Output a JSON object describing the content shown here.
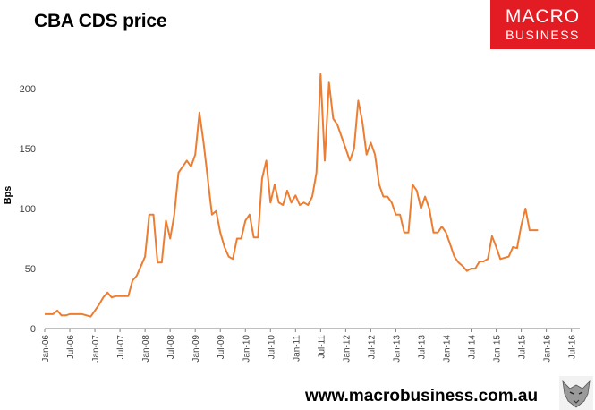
{
  "page": {
    "title": "CBA CDS price",
    "logo": {
      "line1": "MACRO",
      "line2": "BUSINESS"
    },
    "footer_url": "www.macrobusiness.com.au"
  },
  "colors": {
    "line": "#ED7D31",
    "axis": "#7f7f7f",
    "logo_bg": "#e31b23"
  },
  "chart_data": {
    "type": "line",
    "title": "",
    "xlabel": "",
    "ylabel": "Bps",
    "ylim": [
      0,
      200
    ],
    "yticks": [
      0,
      50,
      100,
      150,
      200
    ],
    "xlim": [
      "2006-01",
      "2016-09"
    ],
    "xtick_labels": [
      "Jan-06",
      "Jul-06",
      "Jan-07",
      "Jul-07",
      "Jan-08",
      "Jul-08",
      "Jan-09",
      "Jul-09",
      "Jan-10",
      "Jul-10",
      "Jan-11",
      "Jul-11",
      "Jan-12",
      "Jul-12",
      "Jan-13",
      "Jul-13",
      "Jan-14",
      "Jul-14",
      "Jan-15",
      "Jul-15",
      "Jan-16",
      "Jul-16"
    ],
    "grid": false,
    "legend": "none",
    "series": [
      {
        "x": [
          "2006-01",
          "2006-02",
          "2006-03",
          "2006-04",
          "2006-05",
          "2006-06",
          "2006-07",
          "2006-08",
          "2006-09",
          "2006-10",
          "2006-11",
          "2006-12",
          "2007-01",
          "2007-02",
          "2007-03",
          "2007-04",
          "2007-05",
          "2007-06",
          "2007-07",
          "2007-08",
          "2007-09",
          "2007-10",
          "2007-11",
          "2007-12",
          "2008-01",
          "2008-02",
          "2008-03",
          "2008-04",
          "2008-05",
          "2008-06",
          "2008-07",
          "2008-08",
          "2008-09",
          "2008-10",
          "2008-11",
          "2008-12",
          "2009-01",
          "2009-02",
          "2009-03",
          "2009-04",
          "2009-05",
          "2009-06",
          "2009-07",
          "2009-08",
          "2009-09",
          "2009-10",
          "2009-11",
          "2009-12",
          "2010-01",
          "2010-02",
          "2010-03",
          "2010-04",
          "2010-05",
          "2010-06",
          "2010-07",
          "2010-08",
          "2010-09",
          "2010-10",
          "2010-11",
          "2010-12",
          "2011-01",
          "2011-02",
          "2011-03",
          "2011-04",
          "2011-05",
          "2011-06",
          "2011-07",
          "2011-08",
          "2011-09",
          "2011-10",
          "2011-11",
          "2011-12",
          "2012-01",
          "2012-02",
          "2012-03",
          "2012-04",
          "2012-05",
          "2012-06",
          "2012-07",
          "2012-08",
          "2012-09",
          "2012-10",
          "2012-11",
          "2012-12",
          "2013-01",
          "2013-02",
          "2013-03",
          "2013-04",
          "2013-05",
          "2013-06",
          "2013-07",
          "2013-08",
          "2013-09",
          "2013-10",
          "2013-11",
          "2013-12",
          "2014-01",
          "2014-02",
          "2014-03",
          "2014-04",
          "2014-05",
          "2014-06",
          "2014-07",
          "2014-08",
          "2014-09",
          "2014-10",
          "2014-11",
          "2014-12",
          "2015-01",
          "2015-02",
          "2015-03",
          "2015-04",
          "2015-05",
          "2015-06",
          "2015-07",
          "2015-08",
          "2015-09",
          "2015-10",
          "2015-11"
        ],
        "values": [
          12,
          12,
          12,
          15,
          11,
          11,
          12,
          12,
          12,
          12,
          11,
          10,
          15,
          20,
          26,
          30,
          26,
          27,
          27,
          27,
          27,
          40,
          44,
          52,
          60,
          95,
          95,
          55,
          55,
          90,
          75,
          95,
          130,
          135,
          140,
          135,
          145,
          180,
          155,
          125,
          95,
          98,
          80,
          68,
          60,
          58,
          75,
          75,
          90,
          95,
          76,
          76,
          125,
          140,
          105,
          120,
          105,
          103,
          115,
          105,
          111,
          103,
          105,
          103,
          110,
          130,
          212,
          140,
          205,
          175,
          170,
          160,
          150,
          140,
          150,
          190,
          172,
          145,
          155,
          145,
          120,
          110,
          110,
          105,
          95,
          95,
          80,
          80,
          120,
          115,
          100,
          110,
          100,
          80,
          80,
          85,
          80,
          70,
          60,
          55,
          52,
          48,
          50,
          50,
          56,
          56,
          58,
          77,
          68,
          58,
          59,
          60,
          68,
          67,
          86,
          100,
          82,
          82,
          82
        ]
      }
    ]
  }
}
